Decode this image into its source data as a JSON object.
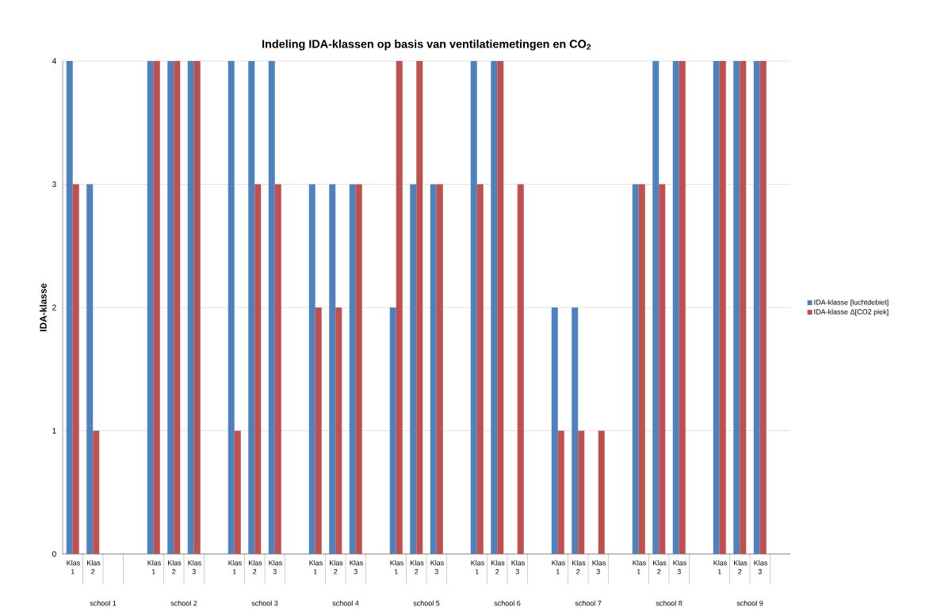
{
  "chart_data": {
    "type": "bar",
    "title": "Indeling IDA-klassen op basis van ventilatiemetingen en CO$_{2}$",
    "ylabel": "IDA-klasse",
    "categories": [
      "Klas 1",
      "Klas 2",
      null,
      null,
      "Klas 1",
      "Klas 2",
      "Klas 3",
      null,
      "Klas 1",
      "Klas 2",
      "Klas 3",
      null,
      "Klas 1",
      "Klas 2",
      "Klas 3",
      null,
      "Klas 1",
      "Klas 2",
      "Klas 3",
      null,
      "Klas 1",
      "Klas 2",
      "Klas 3",
      null,
      "Klas 1",
      "Klas 2",
      "Klas 3",
      null,
      "Klas 1",
      "Klas 2",
      "Klas 3",
      null,
      "Klas 1",
      "Klas 2",
      "Klas 3",
      null
    ],
    "series": [
      {
        "name": "IDA-klasse [luchtdebiet]",
        "color": "#4f81bd",
        "values": [
          4,
          3,
          null,
          null,
          4,
          4,
          4,
          null,
          4,
          4,
          4,
          null,
          3,
          3,
          3,
          null,
          2,
          3,
          3,
          null,
          4,
          4,
          null,
          null,
          2,
          2,
          null,
          null,
          3,
          4,
          4,
          null,
          4,
          4,
          4,
          null
        ]
      },
      {
        "name": "IDA-klasse Δ[CO2 piek]",
        "color": "#c0504d",
        "values": [
          3,
          1,
          null,
          null,
          4,
          4,
          4,
          null,
          1,
          3,
          3,
          null,
          2,
          2,
          3,
          null,
          4,
          4,
          3,
          null,
          3,
          4,
          3,
          null,
          1,
          1,
          1,
          null,
          3,
          3,
          4,
          null,
          4,
          4,
          4,
          null
        ]
      }
    ],
    "annotations": [
      "school 1",
      "school 2",
      "school 3",
      "school 4",
      "school 5",
      "school 6",
      "school 7",
      "school 8",
      "school 9"
    ],
    "ylim": [
      0,
      4
    ],
    "yticks": [
      0,
      1,
      2,
      3,
      4
    ],
    "grid": "y",
    "legend": "right"
  }
}
